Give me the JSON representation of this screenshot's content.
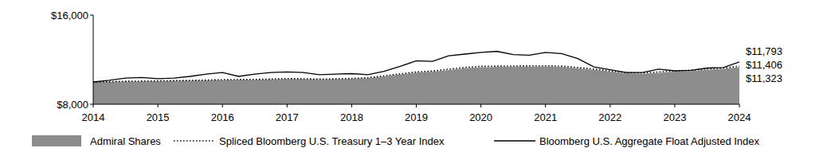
{
  "chart_data": {
    "type": "line",
    "x": [
      2014,
      2014.25,
      2014.5,
      2014.75,
      2015,
      2015.25,
      2015.5,
      2015.75,
      2016,
      2016.25,
      2016.5,
      2016.75,
      2017,
      2017.25,
      2017.5,
      2017.75,
      2018,
      2018.25,
      2018.5,
      2018.75,
      2019,
      2019.25,
      2019.5,
      2019.75,
      2020,
      2020.25,
      2020.5,
      2020.75,
      2021,
      2021.25,
      2021.5,
      2021.75,
      2022,
      2022.25,
      2022.5,
      2022.75,
      2023,
      2023.25,
      2023.5,
      2023.75,
      2024
    ],
    "xlim": [
      2014,
      2024
    ],
    "xticks": [
      2014,
      2015,
      2016,
      2017,
      2018,
      2019,
      2020,
      2021,
      2022,
      2023,
      2024
    ],
    "ylim": [
      8000,
      16000
    ],
    "yticks": [
      {
        "value": 8000,
        "label": "$8,000"
      },
      {
        "value": 16000,
        "label": "$16,000"
      }
    ],
    "grid": false,
    "legend": "bottom",
    "series": [
      {
        "name": "Admiral Shares",
        "type": "area",
        "color": "#8c8c8c",
        "end_label": "$11,323",
        "values": [
          10000,
          10020,
          10040,
          10060,
          10080,
          10100,
          10120,
          10150,
          10180,
          10190,
          10200,
          10230,
          10270,
          10260,
          10230,
          10250,
          10290,
          10340,
          10500,
          10670,
          10840,
          10920,
          11080,
          11230,
          11330,
          11360,
          11370,
          11380,
          11390,
          11360,
          11240,
          11090,
          10920,
          10790,
          10740,
          10830,
          10930,
          10980,
          11100,
          11170,
          11323
        ]
      },
      {
        "name": "Spliced Bloomberg U.S. Treasury 1–3 Year Index",
        "type": "line",
        "line_style": "dotted",
        "color": "#000000",
        "end_label": "$11,406",
        "values": [
          10000,
          10030,
          10060,
          10080,
          10100,
          10120,
          10140,
          10170,
          10200,
          10220,
          10230,
          10260,
          10300,
          10290,
          10260,
          10280,
          10320,
          10380,
          10550,
          10720,
          10900,
          10980,
          11150,
          11300,
          11400,
          11420,
          11430,
          11440,
          11450,
          11420,
          11300,
          11150,
          10980,
          10850,
          10800,
          10900,
          11000,
          11050,
          11180,
          11250,
          11406
        ]
      },
      {
        "name": "Bloomberg U.S. Aggregate Float Adjusted Index",
        "type": "line",
        "line_style": "solid",
        "color": "#000000",
        "end_label": "$11,793",
        "values": [
          10000,
          10150,
          10350,
          10400,
          10300,
          10350,
          10500,
          10700,
          10850,
          10500,
          10700,
          10850,
          10900,
          10850,
          10650,
          10700,
          10750,
          10650,
          10950,
          11400,
          11900,
          11850,
          12350,
          12500,
          12650,
          12750,
          12450,
          12400,
          12650,
          12550,
          12100,
          11350,
          11100,
          10850,
          10850,
          11150,
          11000,
          11050,
          11250,
          11300,
          11793
        ]
      }
    ]
  }
}
